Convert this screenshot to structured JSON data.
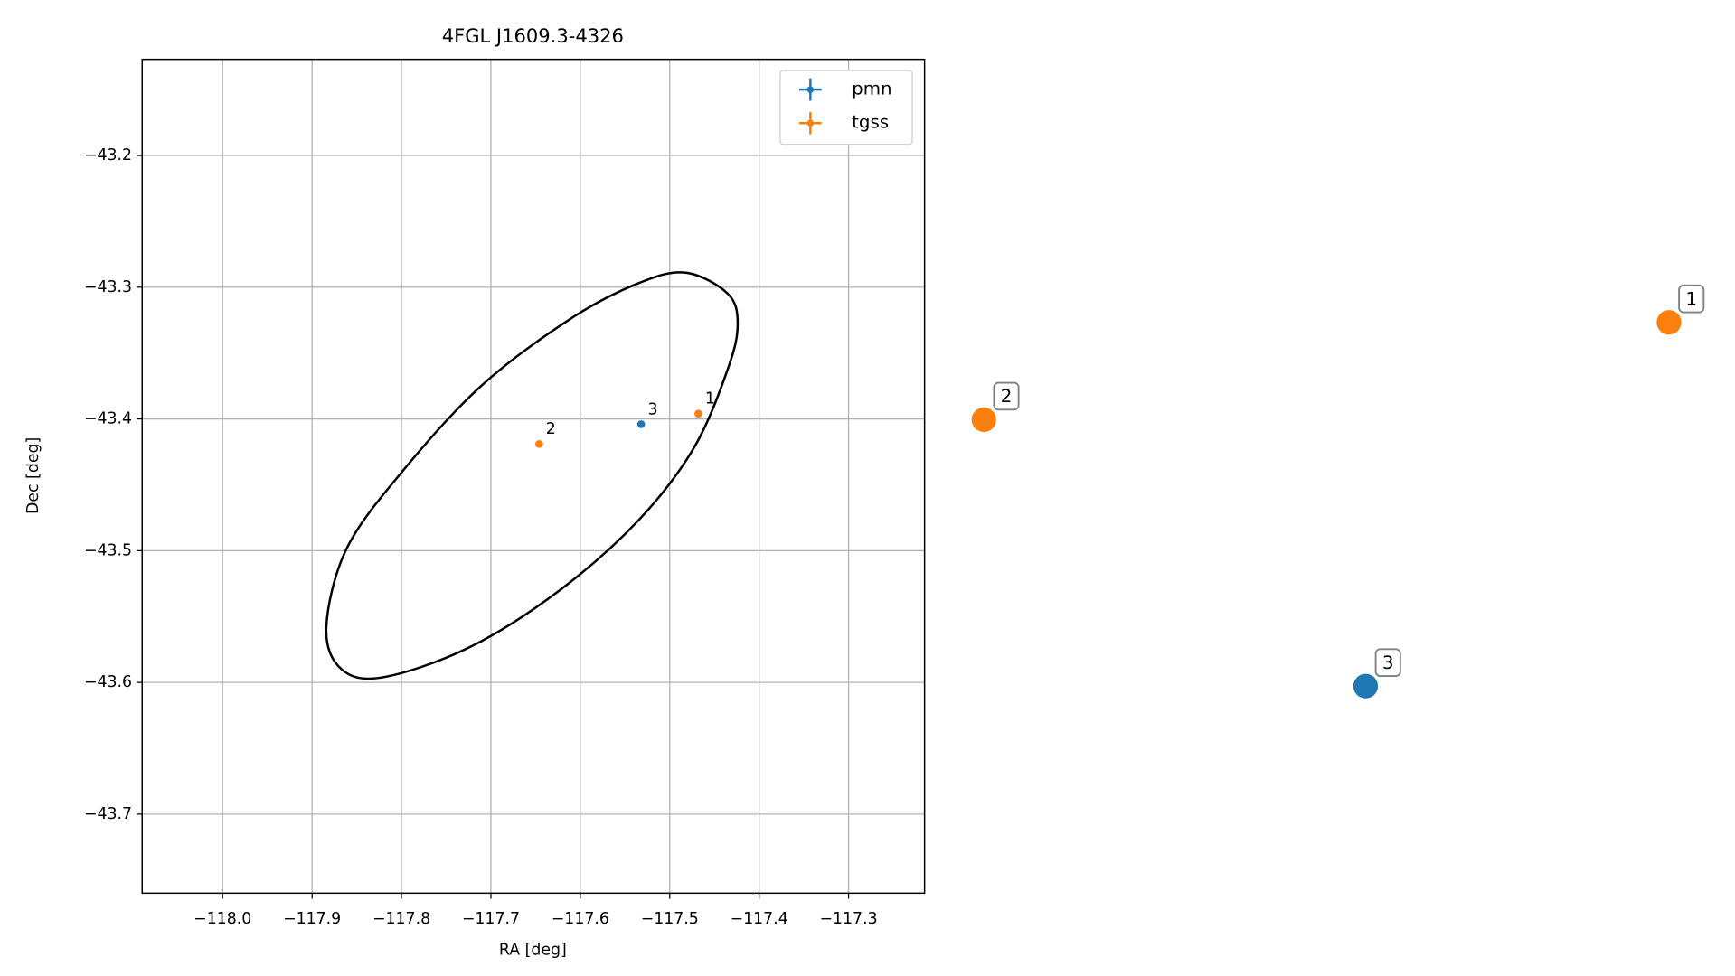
{
  "chart_data": [
    {
      "type": "scatter",
      "title": "4FGL J1609.3-4326",
      "x_label": "RA [deg]",
      "y_label": "Dec [deg]",
      "xlim": [
        -118.09,
        -117.215
      ],
      "ylim": [
        -43.76,
        -43.127
      ],
      "xticks": [
        {
          "value": -118.0,
          "label": "−118.0"
        },
        {
          "value": -117.9,
          "label": "−117.9"
        },
        {
          "value": -117.8,
          "label": "−117.8"
        },
        {
          "value": -117.7,
          "label": "−117.7"
        },
        {
          "value": -117.6,
          "label": "−117.6"
        },
        {
          "value": -117.5,
          "label": "−117.5"
        },
        {
          "value": -117.4,
          "label": "−117.4"
        },
        {
          "value": -117.3,
          "label": "−117.3"
        }
      ],
      "yticks": [
        {
          "value": -43.2,
          "label": "−43.2"
        },
        {
          "value": -43.3,
          "label": "−43.3"
        },
        {
          "value": -43.4,
          "label": "−43.4"
        },
        {
          "value": -43.5,
          "label": "−43.5"
        },
        {
          "value": -43.6,
          "label": "−43.6"
        },
        {
          "value": -43.7,
          "label": "−43.7"
        }
      ],
      "grid": true,
      "legend": "upper right",
      "series": [
        {
          "name": "pmn",
          "color": "#1f77b4",
          "x": [
            -117.532
          ],
          "y": [
            -43.404
          ],
          "labels": [
            "3"
          ]
        },
        {
          "name": "tgss",
          "color": "#ff7f0e",
          "x": [
            -117.468,
            -117.646
          ],
          "y": [
            -43.396,
            -43.419
          ],
          "labels": [
            "1",
            "2"
          ]
        }
      ],
      "ellipse": {
        "color": "#000000",
        "ra": [
          -117.482,
          -117.435,
          -117.424,
          -117.435,
          -117.473,
          -117.535,
          -117.623,
          -117.723,
          -117.82,
          -117.867,
          -117.884,
          -117.861,
          -117.798,
          -117.711,
          -117.611,
          -117.535
        ],
        "dec": [
          -43.289,
          -43.305,
          -43.328,
          -43.362,
          -43.422,
          -43.477,
          -43.53,
          -43.573,
          -43.596,
          -43.59,
          -43.558,
          -43.498,
          -43.439,
          -43.375,
          -43.324,
          -43.297
        ]
      }
    },
    {
      "type": "markers",
      "series": [
        {
          "color": "#ff7f0e",
          "labels": [
            "1",
            "2"
          ]
        },
        {
          "color": "#1f77b4",
          "labels": [
            "3"
          ]
        }
      ]
    }
  ]
}
